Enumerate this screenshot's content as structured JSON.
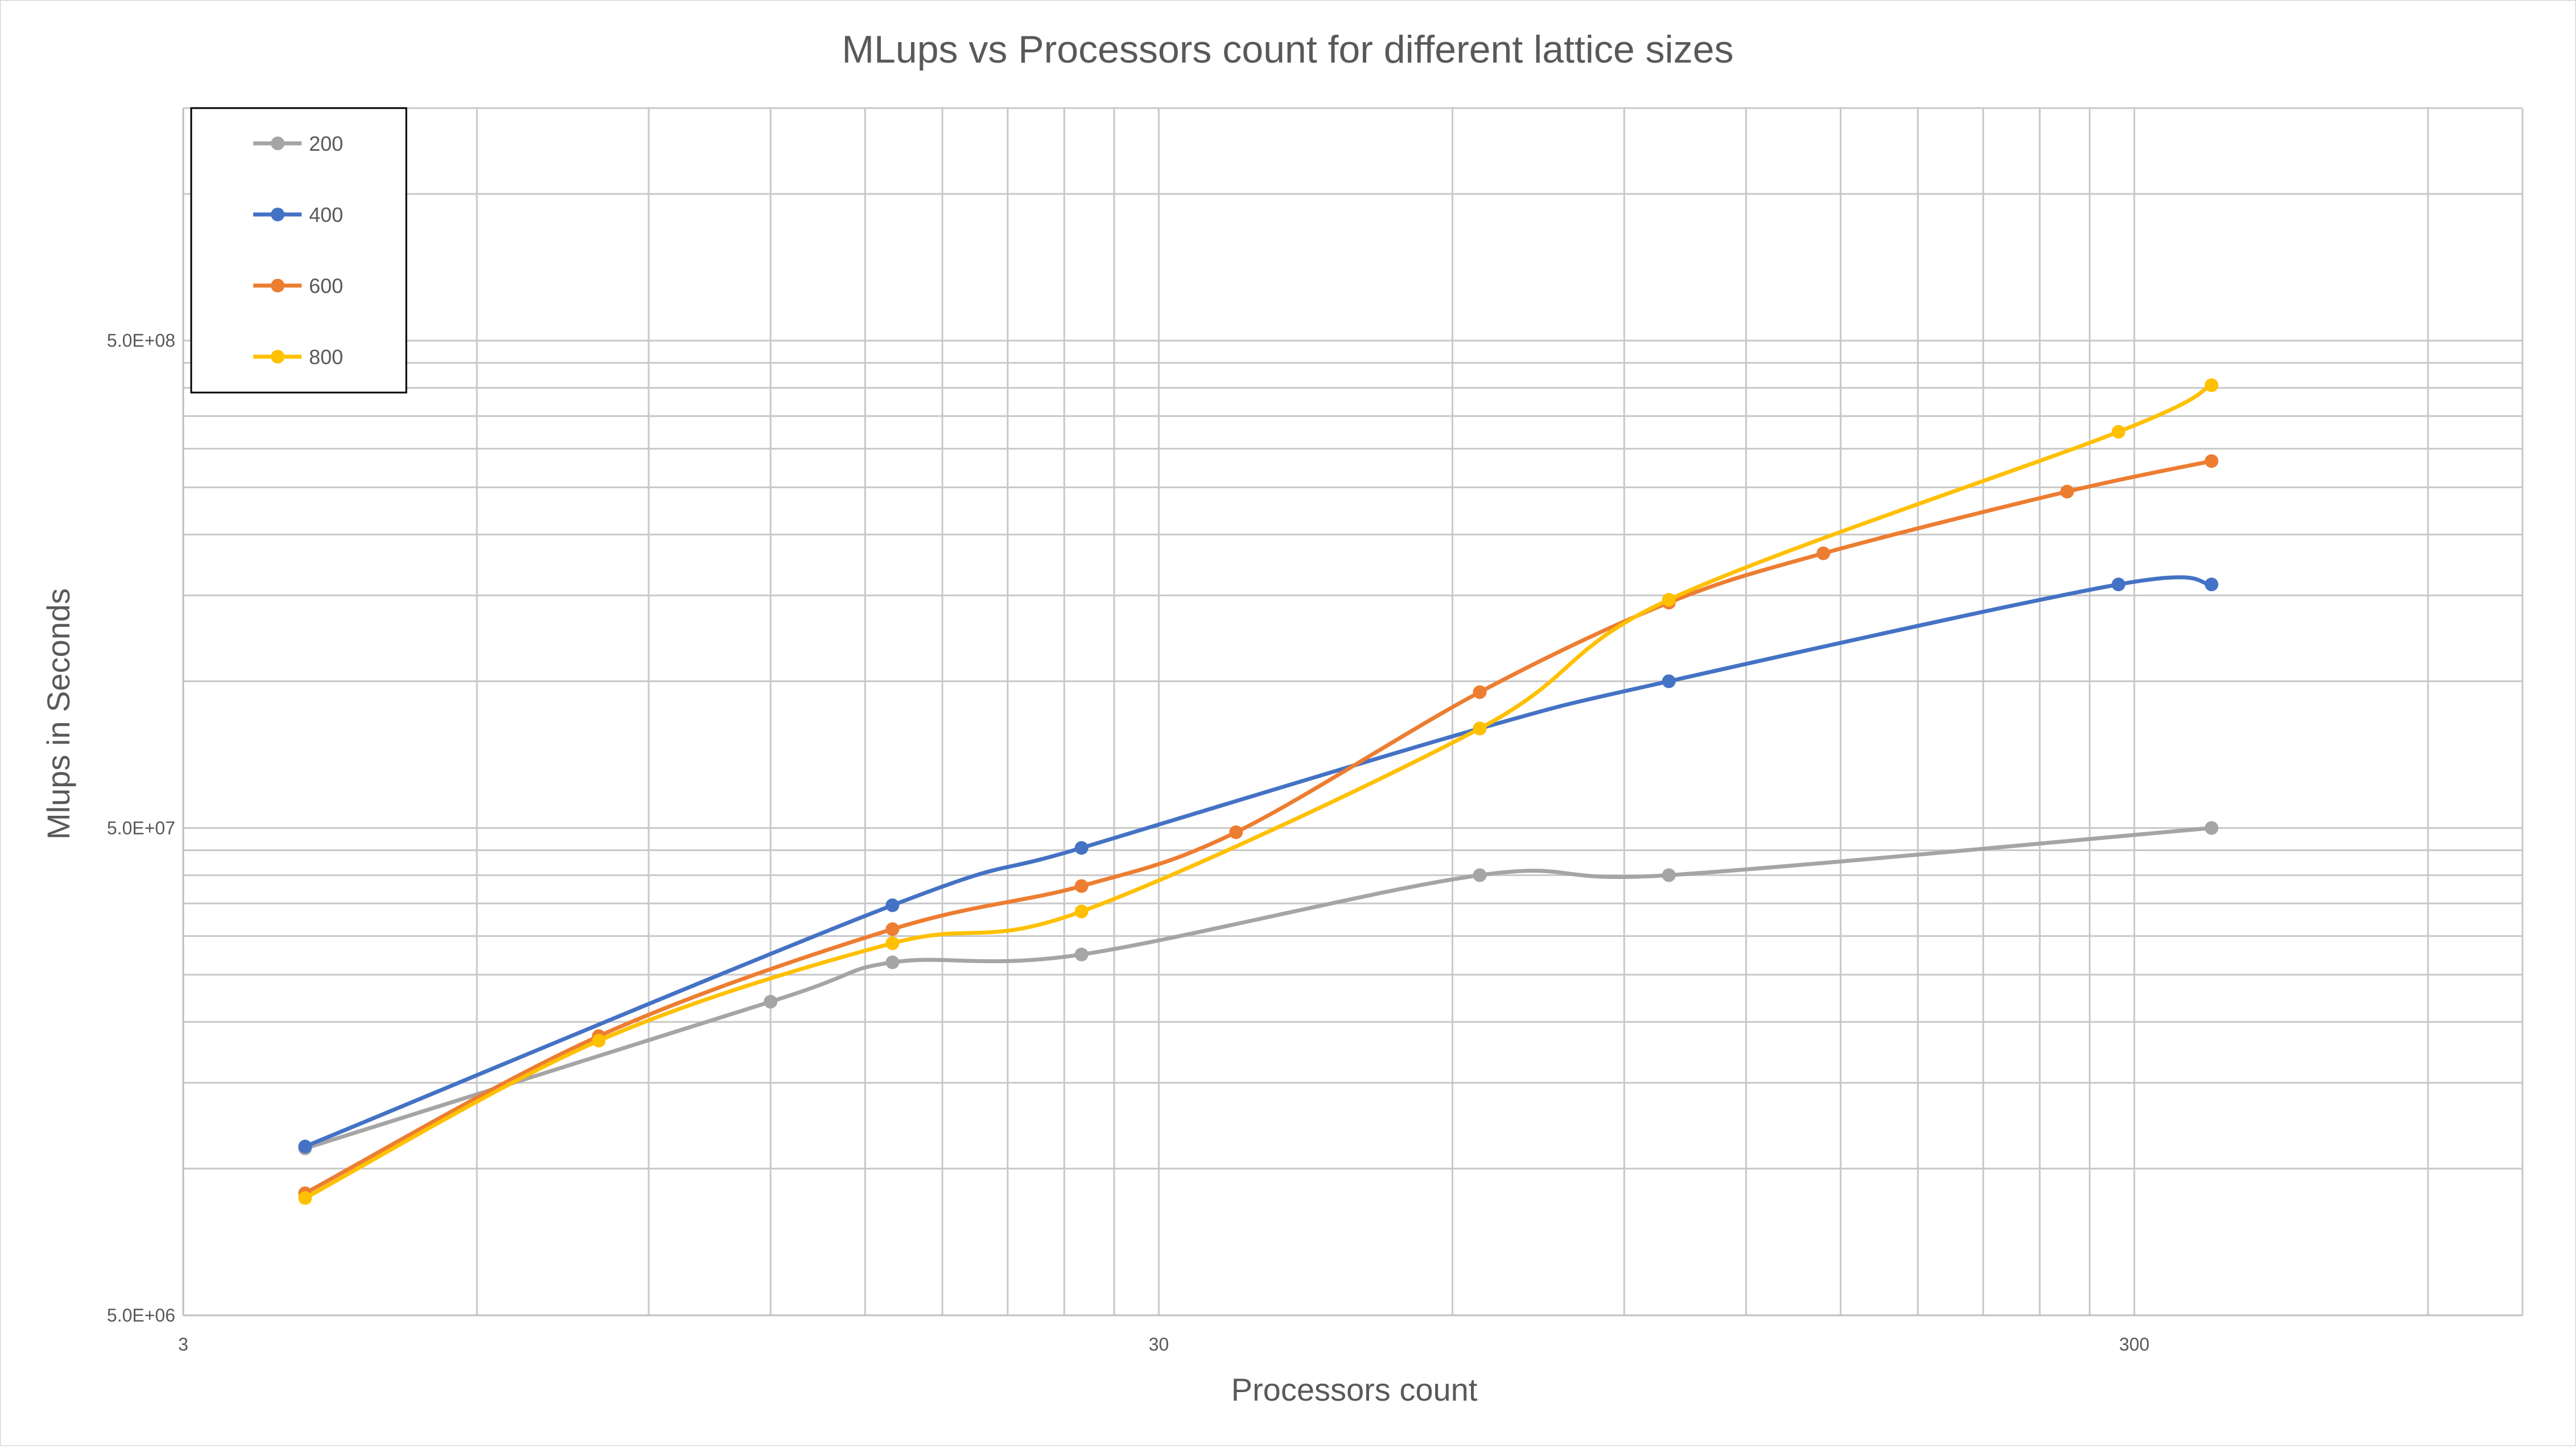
{
  "chart_data": {
    "type": "line",
    "title": "MLups vs Processors count for different lattice sizes",
    "xlabel": "Processors count",
    "ylabel": "Mlups in Seconds",
    "x_scale": "log",
    "y_scale": "log",
    "xlim": [
      3,
      750
    ],
    "ylim": [
      5000000,
      1500000000
    ],
    "x_ticks": [
      {
        "value": 3,
        "label": "3"
      },
      {
        "value": 30,
        "label": "30"
      },
      {
        "value": 300,
        "label": "300"
      }
    ],
    "y_ticks": [
      {
        "value": 5000000,
        "label": "5.0E+06"
      },
      {
        "value": 50000000,
        "label": "5.0E+07"
      },
      {
        "value": 500000000,
        "label": "5.0E+08"
      }
    ],
    "grid": true,
    "legend_position": "top-left",
    "series": [
      {
        "name": "200",
        "color": "#a5a5a5",
        "points": [
          [
            4,
            11000000
          ],
          [
            12,
            22000000
          ],
          [
            16,
            26500000
          ],
          [
            25,
            27500000
          ],
          [
            64,
            40000000
          ],
          [
            100,
            40000000
          ],
          [
            360,
            50000000
          ]
        ]
      },
      {
        "name": "400",
        "color": "#4472c4",
        "points": [
          [
            4,
            11100000
          ],
          [
            16,
            34700000
          ],
          [
            25,
            45500000
          ],
          [
            64,
            80000000
          ],
          [
            100,
            100000000
          ],
          [
            289,
            158000000
          ],
          [
            360,
            158000000
          ]
        ]
      },
      {
        "name": "600",
        "color": "#ed7d31",
        "points": [
          [
            4,
            8900000
          ],
          [
            8,
            18700000
          ],
          [
            16,
            31000000
          ],
          [
            25,
            38000000
          ],
          [
            36,
            49000000
          ],
          [
            64,
            95000000
          ],
          [
            100,
            145000000
          ],
          [
            144,
            183000000
          ],
          [
            256,
            245000000
          ],
          [
            360,
            283000000
          ]
        ]
      },
      {
        "name": "800",
        "color": "#ffc000",
        "points": [
          [
            4,
            8700000
          ],
          [
            8,
            18300000
          ],
          [
            16,
            29000000
          ],
          [
            25,
            33700000
          ],
          [
            64,
            80000000
          ],
          [
            100,
            147000000
          ],
          [
            289,
            325000000
          ],
          [
            360,
            405000000
          ]
        ]
      }
    ]
  }
}
